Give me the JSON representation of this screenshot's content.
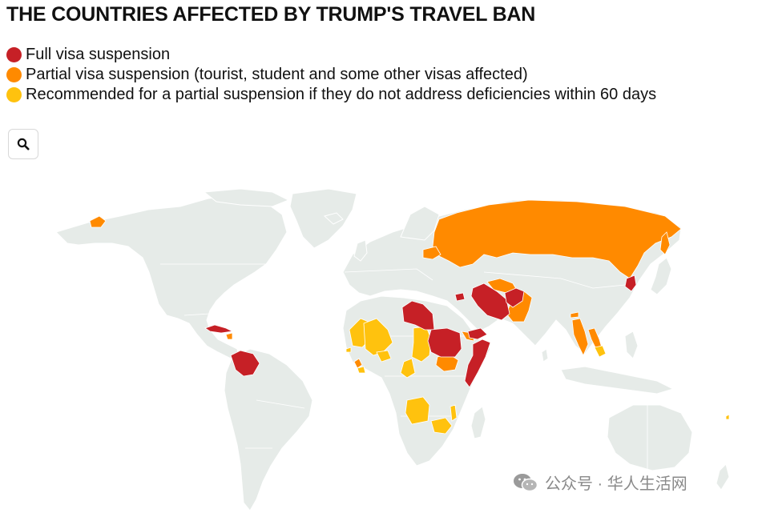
{
  "title": "THE COUNTRIES AFFECTED BY TRUMP'S TRAVEL BAN",
  "legend": [
    {
      "label": "Full visa suspension",
      "color": "#c62026"
    },
    {
      "label": "Partial visa suspension (tourist, student and some other visas affected)",
      "color": "#ff8a00"
    },
    {
      "label": "Recommended for a partial suspension if they do not address deficiencies within 60 days",
      "color": "#ffc20e"
    }
  ],
  "zoom": {
    "icon": "search-icon"
  },
  "map": {
    "base_color": "#e6ebe8",
    "categories": {
      "full": [
        "Afghanistan",
        "Iran",
        "Yemen",
        "Libya",
        "Sudan",
        "Somalia",
        "Venezuela",
        "Cuba",
        "North Korea",
        "Syria"
      ],
      "partial": [
        "Russia",
        "Belarus",
        "Pakistan",
        "Turkmenistan",
        "Bhutan",
        "Laos",
        "Myanmar",
        "Eritrea",
        "South Sudan",
        "Sierra Leone",
        "Haiti"
      ],
      "recommended": [
        "Mali",
        "Mauritania",
        "Burkina Faso",
        "Chad",
        "Cameroon",
        "Angola",
        "Zambia",
        "Malawi",
        "Cambodia",
        "Liberia",
        "Gambia"
      ]
    }
  },
  "watermark": {
    "text": "公众号 · 华人生活网",
    "icon": "wechat-icon"
  }
}
